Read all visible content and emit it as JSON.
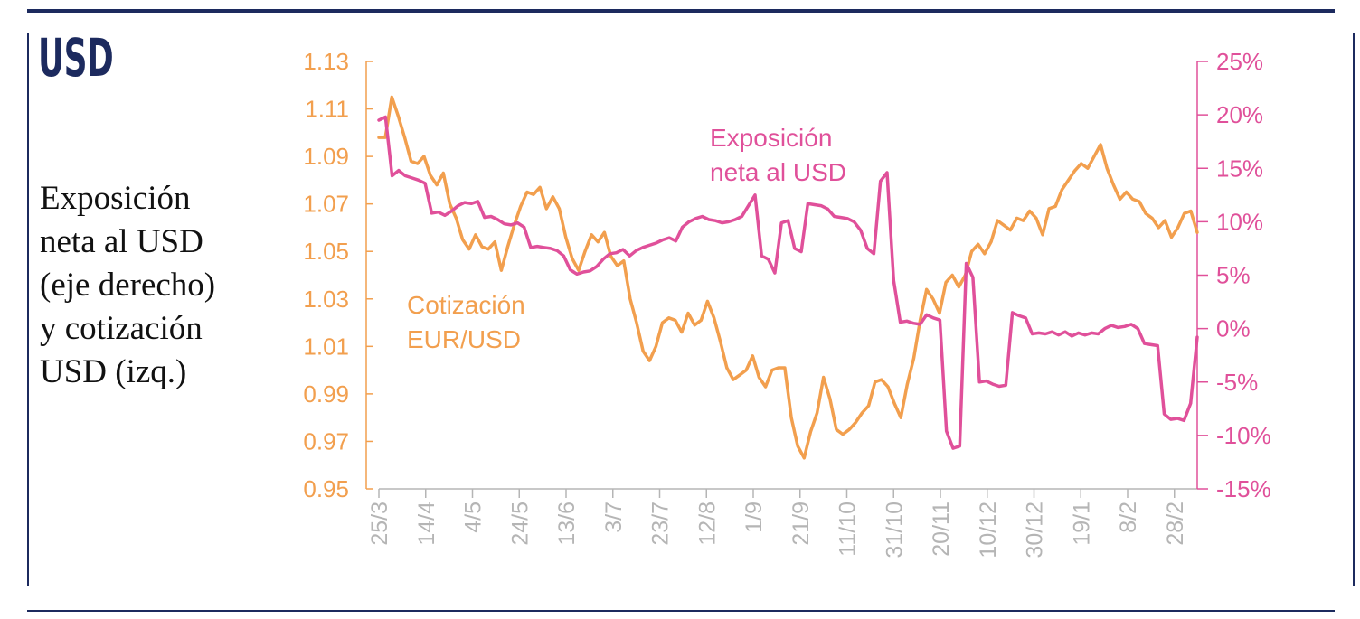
{
  "header": {
    "title": "USD"
  },
  "side_caption": {
    "lines": [
      "Exposición",
      "neta al USD",
      "(eje derecho)",
      "y cotización",
      "USD (izq.)"
    ]
  },
  "colors": {
    "rate": "#f29f4e",
    "exposure": "#e0509a",
    "rule": "#1c2a5e",
    "tick_label": "#b5b5b5",
    "caption": "#111111"
  },
  "chart_data": {
    "type": "line",
    "y_left": {
      "ticks": [
        "1.13",
        "1.11",
        "1.09",
        "1.07",
        "1.05",
        "1.03",
        "1.01",
        "0.99",
        "0.97",
        "0.95"
      ],
      "ylim": [
        0.95,
        1.13
      ]
    },
    "y_right": {
      "ticks": [
        "25%",
        "20%",
        "15%",
        "10%",
        "5%",
        "0%",
        "-5%",
        "-10%",
        "-15%"
      ],
      "ylim": [
        -15,
        25
      ]
    },
    "x_ticks": [
      "25/3",
      "14/4",
      "4/5",
      "24/5",
      "13/6",
      "3/7",
      "23/7",
      "12/8",
      "1/9",
      "21/9",
      "11/10",
      "31/10",
      "20/11",
      "10/12",
      "30/12",
      "19/1",
      "8/2",
      "28/2"
    ],
    "series": [
      {
        "name": "Cotización EUR/USD",
        "label_lines": [
          "Cotización",
          "EUR/USD"
        ],
        "axis": "left",
        "values": [
          1.098,
          1.098,
          1.115,
          1.107,
          1.098,
          1.088,
          1.087,
          1.09,
          1.082,
          1.078,
          1.083,
          1.07,
          1.064,
          1.055,
          1.051,
          1.057,
          1.052,
          1.051,
          1.054,
          1.042,
          1.052,
          1.061,
          1.069,
          1.075,
          1.074,
          1.077,
          1.068,
          1.073,
          1.068,
          1.056,
          1.047,
          1.042,
          1.05,
          1.057,
          1.054,
          1.058,
          1.048,
          1.044,
          1.046,
          1.03,
          1.02,
          1.008,
          1.004,
          1.01,
          1.02,
          1.022,
          1.021,
          1.016,
          1.024,
          1.019,
          1.021,
          1.029,
          1.022,
          1.012,
          1.001,
          0.996,
          0.998,
          1.0,
          1.006,
          0.997,
          0.993,
          1.0,
          1.001,
          1.001,
          0.98,
          0.968,
          0.963,
          0.974,
          0.982,
          0.997,
          0.988,
          0.975,
          0.973,
          0.975,
          0.978,
          0.982,
          0.985,
          0.995,
          0.996,
          0.993,
          0.986,
          0.98,
          0.994,
          1.005,
          1.021,
          1.034,
          1.03,
          1.024,
          1.037,
          1.04,
          1.035,
          1.04,
          1.05,
          1.053,
          1.049,
          1.054,
          1.063,
          1.061,
          1.059,
          1.064,
          1.063,
          1.067,
          1.064,
          1.057,
          1.068,
          1.069,
          1.076,
          1.08,
          1.084,
          1.087,
          1.085,
          1.09,
          1.095,
          1.085,
          1.078,
          1.072,
          1.075,
          1.072,
          1.071,
          1.066,
          1.064,
          1.06,
          1.063,
          1.056,
          1.06,
          1.066,
          1.067,
          1.058
        ]
      },
      {
        "name": "Exposición neta al USD",
        "label_lines": [
          "Exposición",
          "neta al USD"
        ],
        "axis": "right",
        "values": [
          19.5,
          19.8,
          14.3,
          14.8,
          14.3,
          14.1,
          13.9,
          13.6,
          10.8,
          10.9,
          10.6,
          11.0,
          11.5,
          11.8,
          11.7,
          11.9,
          10.4,
          10.5,
          10.2,
          9.8,
          9.7,
          9.9,
          9.5,
          7.6,
          7.7,
          7.6,
          7.5,
          7.3,
          6.8,
          5.5,
          5.1,
          5.3,
          5.4,
          5.8,
          6.5,
          7.0,
          7.1,
          7.4,
          6.8,
          7.3,
          7.6,
          7.8,
          8.0,
          8.3,
          8.5,
          8.2,
          9.5,
          10.0,
          10.3,
          10.5,
          10.2,
          10.1,
          9.9,
          10.0,
          10.2,
          10.5,
          11.5,
          12.5,
          6.8,
          6.5,
          5.2,
          9.9,
          10.1,
          7.5,
          7.2,
          11.7,
          11.6,
          11.5,
          11.2,
          10.5,
          10.4,
          10.3,
          10.0,
          9.2,
          7.5,
          7.0,
          13.8,
          14.6,
          4.5,
          0.6,
          0.7,
          0.5,
          0.4,
          1.3,
          1.0,
          0.8,
          -9.6,
          -11.2,
          -11.0,
          6.1,
          4.8,
          -5.0,
          -4.9,
          -5.2,
          -5.4,
          -5.3,
          1.5,
          1.2,
          1.0,
          -0.5,
          -0.4,
          -0.5,
          -0.3,
          -0.6,
          -0.3,
          -0.7,
          -0.4,
          -0.6,
          -0.4,
          -0.5,
          0.0,
          0.3,
          0.1,
          0.2,
          0.4,
          0.0,
          -1.4,
          -1.5,
          -1.6,
          -8.0,
          -8.5,
          -8.4,
          -8.6,
          -7.0,
          -0.8
        ]
      }
    ],
    "grid": false,
    "legend": "inline labels"
  }
}
